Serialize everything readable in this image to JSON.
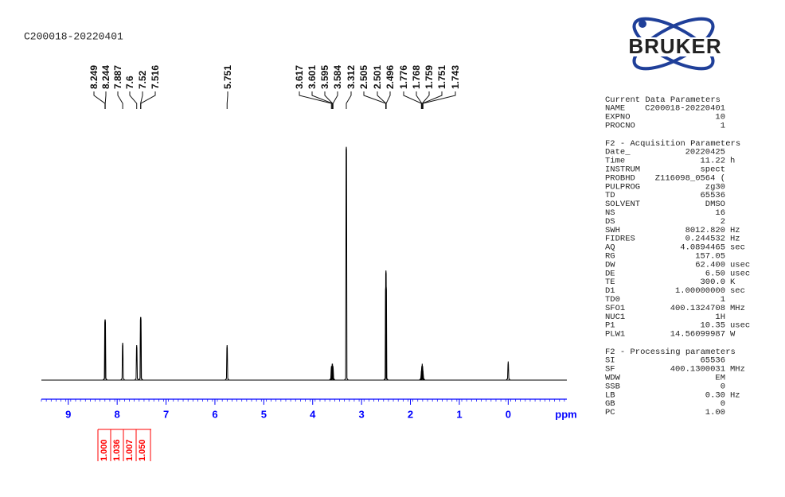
{
  "chart_data": {
    "type": "nmr",
    "title": "C200018-20220401",
    "xlabel": "ppm",
    "xlim": [
      9.55,
      -1.2
    ],
    "xticks": [
      9,
      8,
      7,
      6,
      5,
      4,
      3,
      2,
      1,
      0
    ],
    "ylim": [
      0,
      105
    ],
    "color": "#000000",
    "axis_color": "#0000ff",
    "peaks": {
      "x": [
        8.249,
        8.244,
        7.887,
        7.6,
        7.52,
        7.516,
        5.751,
        3.617,
        3.601,
        3.595,
        3.584,
        3.312,
        2.505,
        2.501,
        2.496,
        1.776,
        1.768,
        1.759,
        1.751,
        1.743
      ],
      "values": [
        26,
        26,
        16,
        15,
        27,
        27,
        15,
        6,
        7,
        7,
        6,
        100,
        40,
        47,
        40,
        4,
        6,
        7,
        6,
        4
      ]
    },
    "reference_peak": {
      "x": [
        0
      ],
      "values": [
        8
      ]
    },
    "integrals": {
      "values": [
        1,
        1.036,
        1.007,
        1.05
      ],
      "value_labels": [
        "1.000",
        "1.036",
        "1.007",
        "1.050"
      ],
      "color": "#ff0000"
    }
  },
  "logo": "BRUKER",
  "parameters": [
    {
      "heading": "Current Data Parameters",
      "rows": [
        [
          "NAME",
          "C200018-20220401",
          ""
        ],
        [
          "EXPNO",
          "10",
          ""
        ],
        [
          "PROCNO",
          "1",
          ""
        ]
      ]
    },
    {
      "heading": "F2 - Acquisition Parameters",
      "rows": [
        [
          "Date_",
          "20220425",
          ""
        ],
        [
          "Time",
          "11.22",
          "h"
        ],
        [
          "INSTRUM",
          "spect",
          ""
        ],
        [
          "PROBHD",
          "Z116098_0564 (",
          ""
        ],
        [
          "PULPROG",
          "zg30",
          ""
        ],
        [
          "TD",
          "65536",
          ""
        ],
        [
          "SOLVENT",
          "DMSO",
          ""
        ],
        [
          "NS",
          "16",
          ""
        ],
        [
          "DS",
          "2",
          ""
        ],
        [
          "SWH",
          "8012.820",
          "Hz"
        ],
        [
          "FIDRES",
          "0.244532",
          "Hz"
        ],
        [
          "AQ",
          "4.0894465",
          "sec"
        ],
        [
          "RG",
          "157.05",
          ""
        ],
        [
          "DW",
          "62.400",
          "usec"
        ],
        [
          "DE",
          "6.50",
          "usec"
        ],
        [
          "TE",
          "300.0",
          "K"
        ],
        [
          "D1",
          "1.00000000",
          "sec"
        ],
        [
          "TD0",
          "1",
          ""
        ],
        [
          "SFO1",
          "400.1324708",
          "MHz"
        ],
        [
          "NUC1",
          "1H",
          ""
        ],
        [
          "P1",
          "10.35",
          "usec"
        ],
        [
          "PLW1",
          "14.56099987",
          "W"
        ]
      ]
    },
    {
      "heading": "F2 - Processing parameters",
      "rows": [
        [
          "SI",
          "65536",
          ""
        ],
        [
          "SF",
          "400.1300031",
          "MHz"
        ],
        [
          "WDW",
          "EM",
          ""
        ],
        [
          "SSB",
          "0",
          ""
        ],
        [
          "LB",
          "0.30",
          "Hz"
        ],
        [
          "GB",
          "0",
          ""
        ],
        [
          "PC",
          "1.00",
          ""
        ]
      ]
    }
  ]
}
